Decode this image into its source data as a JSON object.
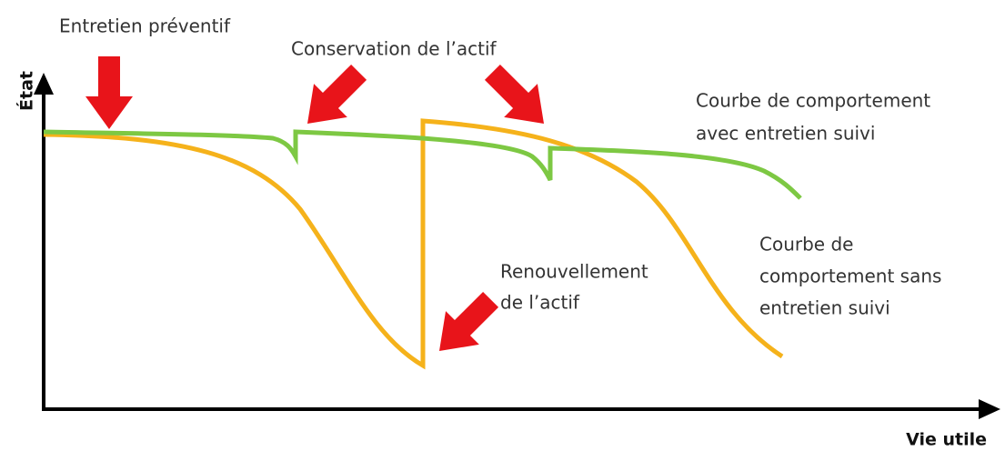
{
  "axes": {
    "y_label": "État",
    "x_label": "Vie utile"
  },
  "annotations": [
    {
      "lines": [
        "Entretien préventif"
      ]
    },
    {
      "lines": [
        "Conservation de l’actif"
      ]
    },
    {
      "lines": [
        "Renouvellement",
        "de l’actif"
      ]
    }
  ],
  "curves": [
    {
      "lines": [
        "Courbe de comportement",
        "avec entretien suivi"
      ]
    },
    {
      "lines": [
        "Courbe de",
        "comportement sans",
        "entretien suivi"
      ]
    }
  ]
}
